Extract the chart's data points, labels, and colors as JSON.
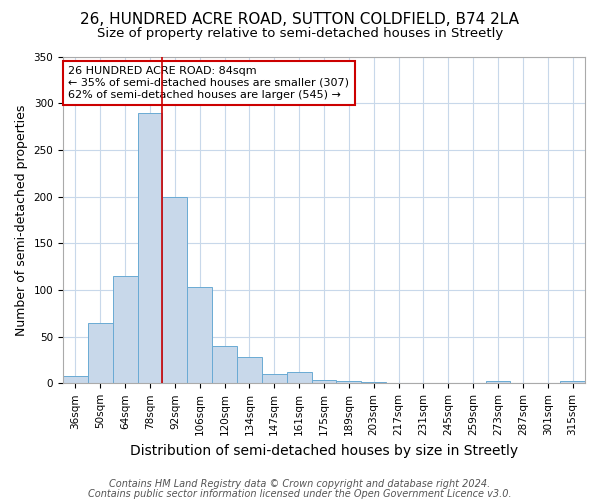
{
  "title": "26, HUNDRED ACRE ROAD, SUTTON COLDFIELD, B74 2LA",
  "subtitle": "Size of property relative to semi-detached houses in Streetly",
  "xlabel": "Distribution of semi-detached houses by size in Streetly",
  "ylabel": "Number of semi-detached properties",
  "categories": [
    "36sqm",
    "50sqm",
    "64sqm",
    "78sqm",
    "92sqm",
    "106sqm",
    "120sqm",
    "134sqm",
    "147sqm",
    "161sqm",
    "175sqm",
    "189sqm",
    "203sqm",
    "217sqm",
    "231sqm",
    "245sqm",
    "259sqm",
    "273sqm",
    "287sqm",
    "301sqm",
    "315sqm"
  ],
  "values": [
    8,
    65,
    115,
    290,
    200,
    103,
    40,
    28,
    10,
    12,
    4,
    2,
    1,
    0,
    0,
    0,
    0,
    3,
    0,
    0,
    3
  ],
  "bar_color": "#c8d8ea",
  "bar_edgecolor": "#6aaad4",
  "vline_x": 3.5,
  "vline_color": "#cc0000",
  "annotation_text": "26 HUNDRED ACRE ROAD: 84sqm\n← 35% of semi-detached houses are smaller (307)\n62% of semi-detached houses are larger (545) →",
  "annotation_box_facecolor": "white",
  "annotation_box_edgecolor": "#cc0000",
  "footnote1": "Contains HM Land Registry data © Crown copyright and database right 2024.",
  "footnote2": "Contains public sector information licensed under the Open Government Licence v3.0.",
  "ylim": [
    0,
    350
  ],
  "yticks": [
    0,
    50,
    100,
    150,
    200,
    250,
    300,
    350
  ],
  "background_color": "white",
  "plot_background": "white",
  "grid_color": "#c8d8ea",
  "title_fontsize": 11,
  "subtitle_fontsize": 9.5,
  "xlabel_fontsize": 10,
  "ylabel_fontsize": 9,
  "tick_fontsize": 7.5,
  "annotation_fontsize": 8,
  "footnote_fontsize": 7
}
